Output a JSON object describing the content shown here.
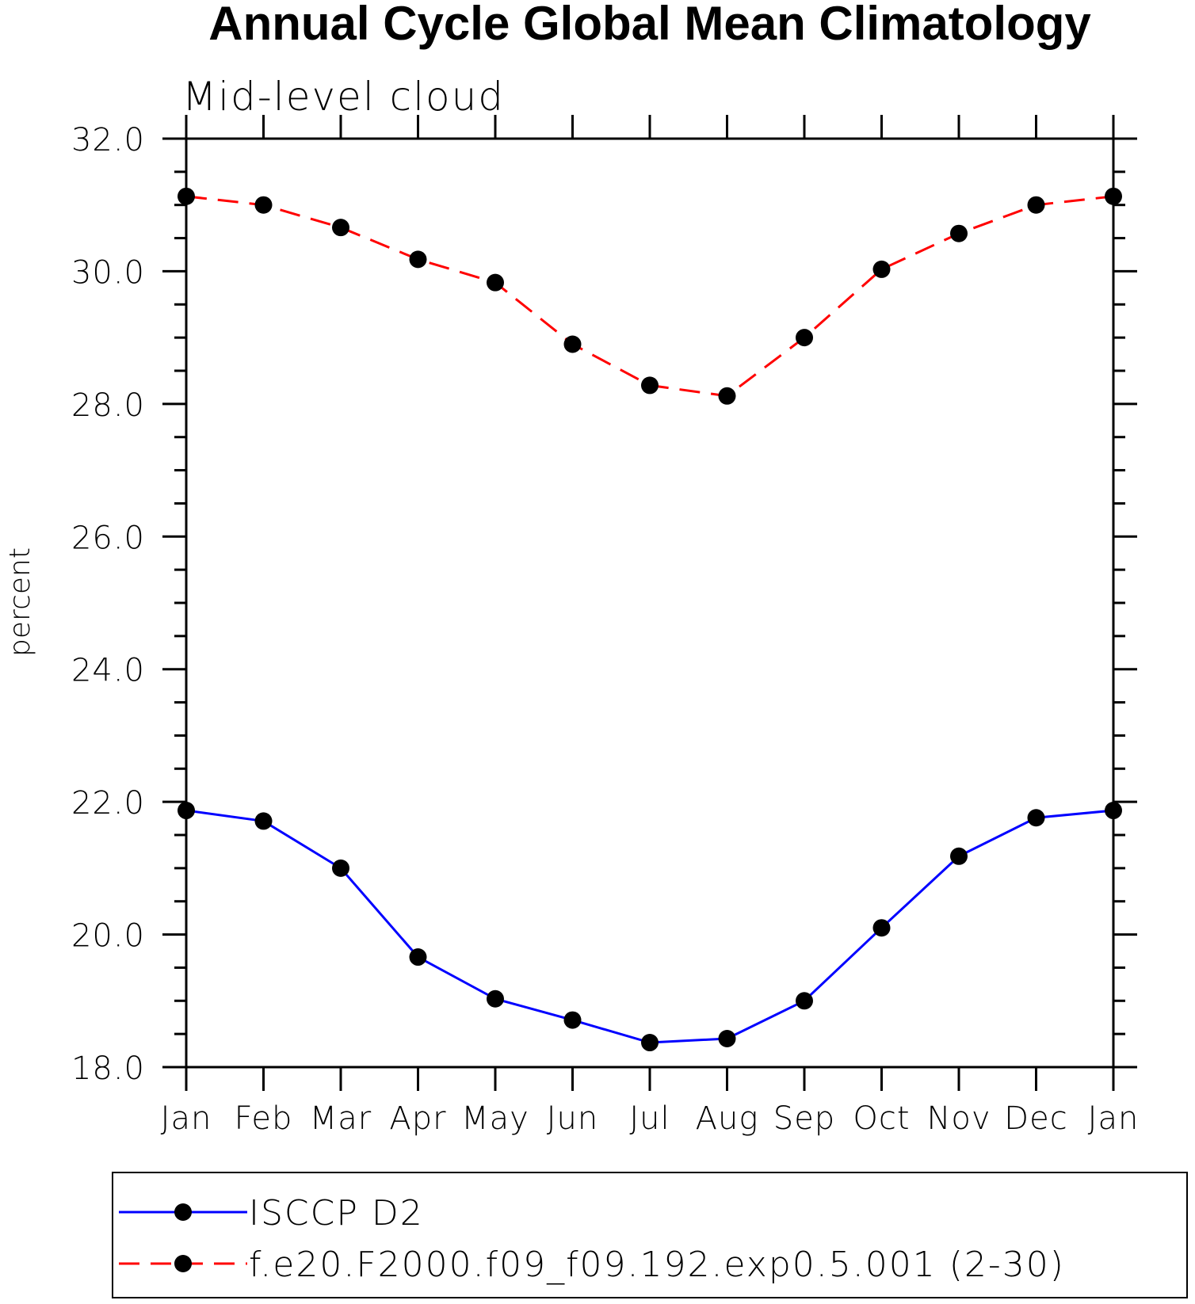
{
  "chart_data": {
    "type": "line",
    "title": "Annual Cycle Global Mean Climatology",
    "subtitle": "Mid-level cloud",
    "xlabel": "",
    "ylabel": "percent",
    "categories": [
      "Jan",
      "Feb",
      "Mar",
      "Apr",
      "May",
      "Jun",
      "Jul",
      "Aug",
      "Sep",
      "Oct",
      "Nov",
      "Dec",
      "Jan"
    ],
    "ylim": [
      18.0,
      32.0
    ],
    "yticks": [
      "18.0",
      "20.0",
      "22.0",
      "24.0",
      "26.0",
      "28.0",
      "30.0",
      "32.0"
    ],
    "grid": false,
    "legend_position": "bottom",
    "series": [
      {
        "name": "ISCCP D2",
        "color": "#0000ff",
        "line_style": "solid",
        "marker": "filled-circle",
        "marker_color": "#000000",
        "values": [
          21.87,
          21.71,
          21.0,
          19.66,
          19.03,
          18.71,
          18.37,
          18.43,
          19.0,
          20.1,
          21.18,
          21.76,
          21.87
        ]
      },
      {
        "name": "f.e20.F2000.f09_f09.192.exp0.5.001 (2-30)",
        "color": "#ff0000",
        "line_style": "dashed",
        "marker": "filled-circle",
        "marker_color": "#000000",
        "values": [
          31.13,
          31.0,
          30.66,
          30.18,
          29.83,
          28.9,
          28.28,
          28.12,
          29.0,
          30.03,
          30.57,
          31.0,
          31.13
        ]
      }
    ]
  }
}
